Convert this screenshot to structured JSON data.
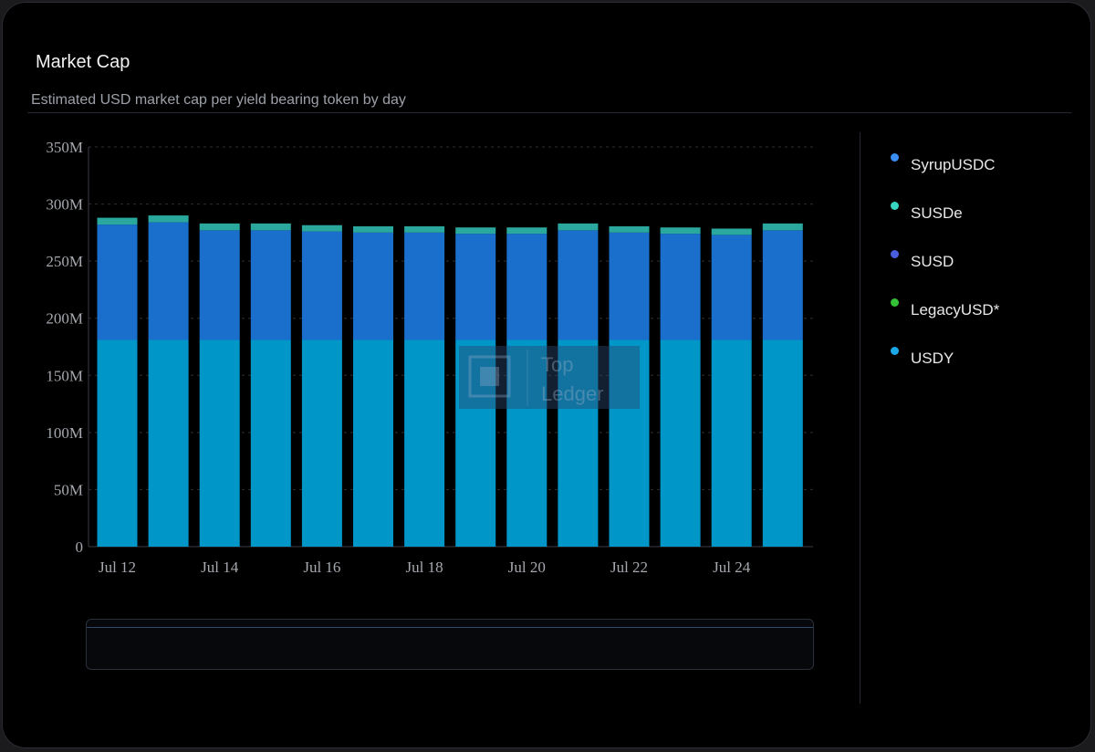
{
  "header": {
    "title": "Market Cap",
    "subtitle": "Estimated USD market cap per yield bearing token by day"
  },
  "watermark": {
    "line1": "Top",
    "line2": "Ledger"
  },
  "legend": [
    {
      "label": "SyrupUSDC",
      "color": "#3a8ef0"
    },
    {
      "label": "SUSDe",
      "color": "#37d6c0"
    },
    {
      "label": "SUSD",
      "color": "#4a5fe0"
    },
    {
      "label": "LegacyUSD*",
      "color": "#35c135"
    },
    {
      "label": "USDY",
      "color": "#1aa8e8"
    }
  ],
  "chart_data": {
    "type": "bar",
    "stacked": true,
    "categories": [
      "Jul 12",
      "Jul 13",
      "Jul 14",
      "Jul 15",
      "Jul 16",
      "Jul 17",
      "Jul 18",
      "Jul 19",
      "Jul 20",
      "Jul 21",
      "Jul 22",
      "Jul 23",
      "Jul 24",
      "Jul 25"
    ],
    "x_tick_labels": [
      "Jul 12",
      "Jul 14",
      "Jul 16",
      "Jul 18",
      "Jul 20",
      "Jul 22",
      "Jul 24"
    ],
    "y_tick_labels": [
      "0",
      "50M",
      "100M",
      "150M",
      "200M",
      "250M",
      "300M",
      "350M"
    ],
    "ylim": [
      0,
      350000000
    ],
    "grid": true,
    "legend_position": "right",
    "series": [
      {
        "name": "USDY",
        "color": "#0096c8",
        "values": [
          181000000,
          181000000,
          181000000,
          181000000,
          181000000,
          181000000,
          181000000,
          181000000,
          181000000,
          181000000,
          181000000,
          181000000,
          181000000,
          181000000
        ]
      },
      {
        "name": "SyrupUSDC",
        "color": "#1a6fcc",
        "values": [
          101000000,
          103000000,
          96000000,
          96000000,
          95000000,
          94000000,
          94000000,
          93000000,
          93000000,
          96000000,
          94000000,
          93000000,
          92000000,
          96000000
        ]
      },
      {
        "name": "SUSDe",
        "color": "#2aa89e",
        "values": [
          6000000,
          6000000,
          6000000,
          6000000,
          5500000,
          5500000,
          5500000,
          5500000,
          5500000,
          6000000,
          5500000,
          5500000,
          5500000,
          6000000
        ]
      }
    ]
  }
}
